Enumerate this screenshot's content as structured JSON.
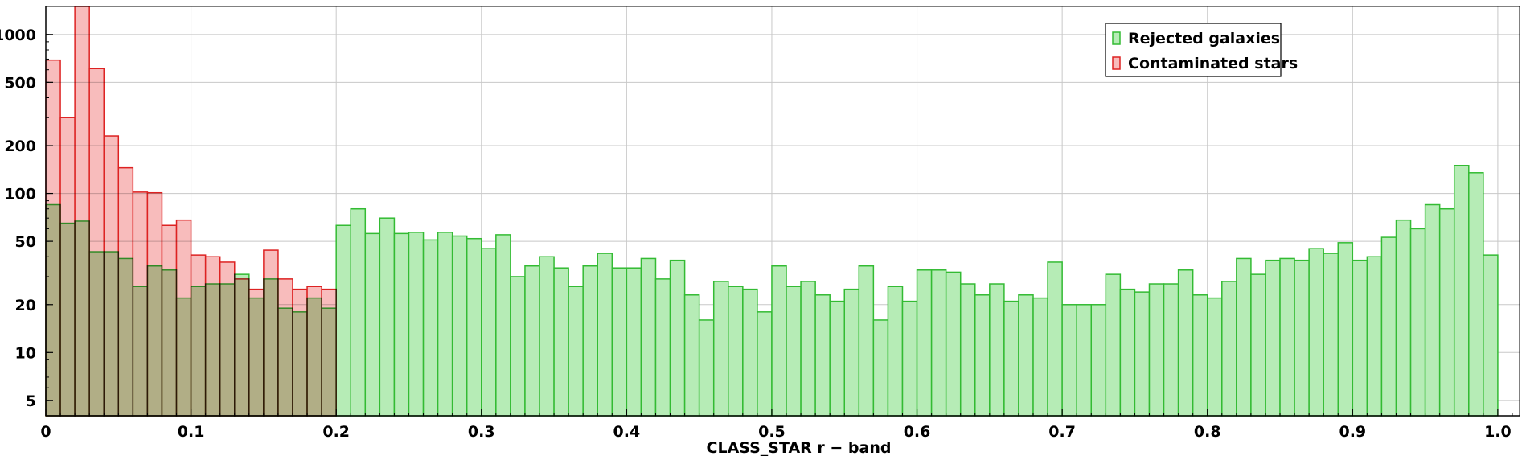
{
  "chart_data": {
    "type": "bar",
    "xlabel": "CLASS_STAR r − band",
    "ylabel": "",
    "xlim": [
      0,
      1.015
    ],
    "ylim": [
      4,
      1500
    ],
    "yscale": "log",
    "bin_width": 0.01,
    "grid": true,
    "legend_position": "top-right",
    "x_ticks": [
      "0",
      "0.1",
      "0.2",
      "0.3",
      "0.4",
      "0.5",
      "0.6",
      "0.7",
      "0.8",
      "0.9",
      "1.0"
    ],
    "y_ticks": [
      "5",
      "10",
      "20",
      "50",
      "100",
      "200",
      "500",
      "1000"
    ],
    "series": [
      {
        "name": "Rejected galaxies",
        "color": "#33bb33",
        "fill": "#b6ecb6",
        "bin_starts": [
          0.0,
          0.01,
          0.02,
          0.03,
          0.04,
          0.05,
          0.06,
          0.07,
          0.08,
          0.09,
          0.1,
          0.11,
          0.12,
          0.13,
          0.14,
          0.15,
          0.16,
          0.17,
          0.18,
          0.19,
          0.2,
          0.21,
          0.22,
          0.23,
          0.24,
          0.25,
          0.26,
          0.27,
          0.28,
          0.29,
          0.3,
          0.31,
          0.32,
          0.33,
          0.34,
          0.35,
          0.36,
          0.37,
          0.38,
          0.39,
          0.4,
          0.41,
          0.42,
          0.43,
          0.44,
          0.45,
          0.46,
          0.47,
          0.48,
          0.49,
          0.5,
          0.51,
          0.52,
          0.53,
          0.54,
          0.55,
          0.56,
          0.57,
          0.58,
          0.59,
          0.6,
          0.61,
          0.62,
          0.63,
          0.64,
          0.65,
          0.66,
          0.67,
          0.68,
          0.69,
          0.7,
          0.71,
          0.72,
          0.73,
          0.74,
          0.75,
          0.76,
          0.77,
          0.78,
          0.79,
          0.8,
          0.81,
          0.82,
          0.83,
          0.84,
          0.85,
          0.86,
          0.87,
          0.88,
          0.89,
          0.9,
          0.91,
          0.92,
          0.93,
          0.94,
          0.95,
          0.96,
          0.97,
          0.98,
          0.99
        ],
        "values": [
          85,
          65,
          67,
          43,
          43,
          39,
          26,
          35,
          33,
          22,
          26,
          27,
          27,
          31,
          22,
          29,
          19,
          18,
          22,
          19,
          63,
          80,
          56,
          70,
          56,
          57,
          51,
          57,
          54,
          52,
          45,
          55,
          30,
          35,
          40,
          34,
          26,
          35,
          42,
          34,
          34,
          39,
          29,
          38,
          23,
          16,
          28,
          26,
          25,
          18,
          35,
          26,
          28,
          23,
          21,
          25,
          35,
          16,
          26,
          21,
          33,
          33,
          32,
          27,
          23,
          27,
          21,
          23,
          22,
          37,
          20,
          20,
          20,
          31,
          25,
          24,
          27,
          27,
          33,
          23,
          22,
          28,
          39,
          31,
          38,
          39,
          38,
          45,
          42,
          49,
          38,
          40,
          53,
          68,
          60,
          85,
          80,
          150,
          135,
          41
        ]
      },
      {
        "name": "Contaminated stars",
        "color": "#dd2222",
        "fill": "#f8bcbc",
        "bin_starts": [
          0.0,
          0.01,
          0.02,
          0.03,
          0.04,
          0.05,
          0.06,
          0.07,
          0.08,
          0.09,
          0.1,
          0.11,
          0.12,
          0.13,
          0.14,
          0.15,
          0.16,
          0.17,
          0.18,
          0.19
        ],
        "values": [
          690,
          300,
          1500,
          610,
          230,
          145,
          102,
          101,
          63,
          68,
          41,
          40,
          37,
          29,
          25,
          44,
          29,
          25,
          26,
          25
        ]
      }
    ]
  }
}
